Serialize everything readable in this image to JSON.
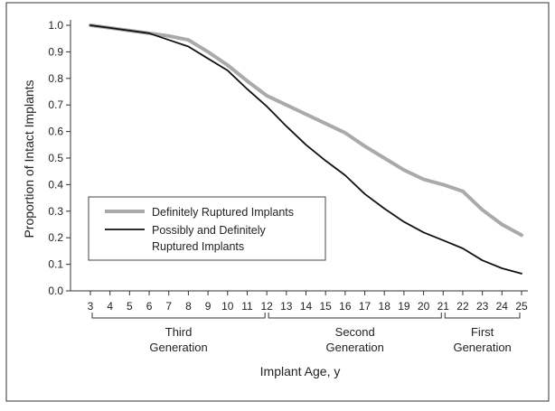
{
  "chart_data": {
    "type": "line",
    "xlabel": "Implant Age, y",
    "ylabel": "Proportion of Intact Implants",
    "xlim": [
      3,
      25
    ],
    "ylim": [
      0,
      1.0
    ],
    "x": [
      3,
      4,
      5,
      6,
      7,
      8,
      9,
      10,
      11,
      12,
      13,
      14,
      15,
      16,
      17,
      18,
      19,
      20,
      21,
      22,
      23,
      24,
      25
    ],
    "xticks": [
      "3",
      "4",
      "5",
      "6",
      "7",
      "8",
      "9",
      "10",
      "11",
      "12",
      "13",
      "14",
      "15",
      "16",
      "17",
      "18",
      "19",
      "20",
      "21",
      "22",
      "23",
      "24",
      "25"
    ],
    "yticks": [
      "0.0",
      "0.1",
      "0.2",
      "0.3",
      "0.4",
      "0.5",
      "0.6",
      "0.7",
      "0.8",
      "0.9",
      "1.0"
    ],
    "grid": false,
    "legend_position": "lower-left",
    "series": [
      {
        "name": "Definitely Ruptured Implants",
        "color": "#aaaaaa",
        "values": [
          1.0,
          0.99,
          0.98,
          0.97,
          0.96,
          0.945,
          0.9,
          0.85,
          0.79,
          0.735,
          0.7,
          0.665,
          0.63,
          0.595,
          0.545,
          0.5,
          0.455,
          0.42,
          0.4,
          0.375,
          0.305,
          0.25,
          0.21
        ]
      },
      {
        "name": "Possibly and Definitely\nRuptured Implants",
        "color": "#111111",
        "values": [
          1.0,
          0.99,
          0.98,
          0.97,
          0.945,
          0.92,
          0.875,
          0.83,
          0.76,
          0.695,
          0.62,
          0.55,
          0.49,
          0.435,
          0.365,
          0.31,
          0.26,
          0.22,
          0.19,
          0.16,
          0.115,
          0.085,
          0.065
        ]
      }
    ],
    "brackets": [
      {
        "label": "Third\nGeneration",
        "from": 3,
        "to": 12
      },
      {
        "label": "Second\nGeneration",
        "from": 12,
        "to": 21
      },
      {
        "label": "First\nGeneration",
        "from": 21,
        "to": 25
      }
    ]
  }
}
